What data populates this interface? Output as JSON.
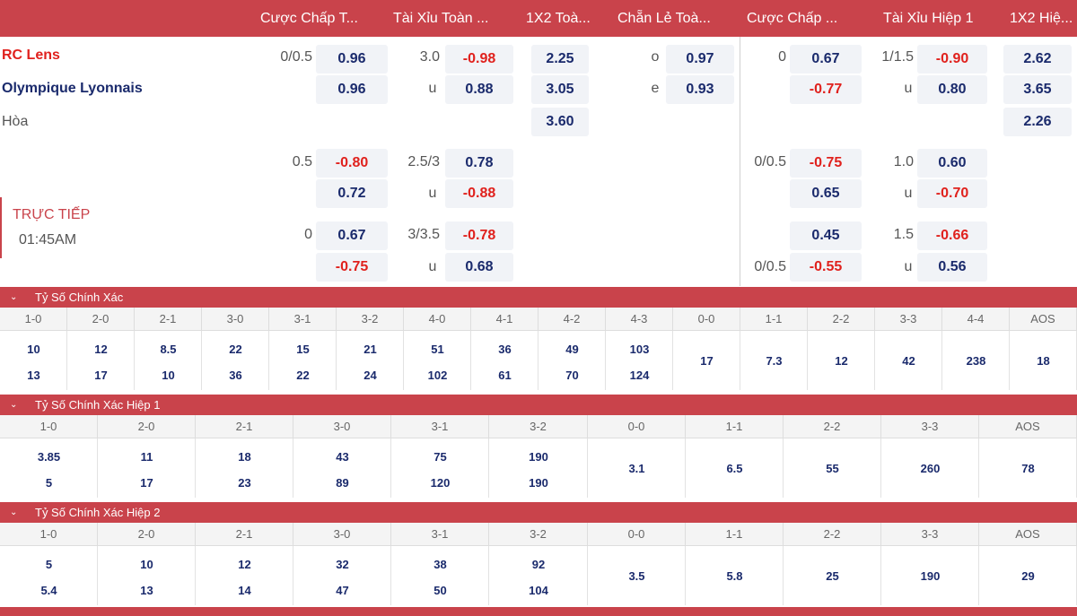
{
  "header": [
    "Cược Chấp T...",
    "Tài Xỉu Toàn ...",
    "1X2 Toà...",
    "Chẵn Lẻ Toà...",
    "Cược Chấp ...",
    "Tài Xỉu Hiệp 1",
    "1X2 Hiệ..."
  ],
  "match": {
    "home": "RC Lens",
    "away": "Olympique Lyonnais",
    "draw": "Hòa",
    "status": "TRỰC TIẾP",
    "time": "01:45AM"
  },
  "odds": {
    "r1": {
      "hdp_line": "0/0.5",
      "hdp_home": "0.96",
      "ou_line": "3.0",
      "ou_over": "-0.98",
      "x12_home": "2.25",
      "oe_o_label": "o",
      "oe_o": "0.97",
      "h1_hdp_line": "0",
      "h1_hdp_home": "0.67",
      "h1_ou_line": "1/1.5",
      "h1_ou_over": "-0.90",
      "h1_x12_home": "2.62"
    },
    "r2": {
      "hdp_away": "0.96",
      "ou_u_label": "u",
      "ou_under": "0.88",
      "x12_away": "3.05",
      "oe_e_label": "e",
      "oe_e": "0.93",
      "h1_hdp_away": "-0.77",
      "h1_ou_u_label": "u",
      "h1_ou_under": "0.80",
      "h1_x12_away": "3.65"
    },
    "r3": {
      "x12_draw": "3.60",
      "h1_x12_draw": "2.26"
    },
    "alt1": {
      "hdp_line": "0.5",
      "hdp_home": "-0.80",
      "ou_line": "2.5/3",
      "ou_over": "0.78",
      "h1_hdp_line": "0/0.5",
      "h1_hdp_home": "-0.75",
      "h1_ou_line": "1.0",
      "h1_ou_over": "0.60"
    },
    "alt1b": {
      "hdp_away": "0.72",
      "ou_u_label": "u",
      "ou_under": "-0.88",
      "h1_hdp_away": "0.65",
      "h1_ou_u_label": "u",
      "h1_ou_under": "-0.70"
    },
    "alt2": {
      "hdp_line": "0",
      "hdp_home": "0.67",
      "ou_line": "3/3.5",
      "ou_over": "-0.78",
      "h1_hdp_home": "0.45",
      "h1_ou_line": "1.5",
      "h1_ou_over": "-0.66"
    },
    "alt2b": {
      "hdp_away": "-0.75",
      "ou_u_label": "u",
      "ou_under": "0.68",
      "h1_hdp_line": "0/0.5",
      "h1_hdp_away": "-0.55",
      "h1_ou_u_label": "u",
      "h1_ou_under": "0.56"
    }
  },
  "sections": [
    {
      "title": "Tỷ Số Chính Xác",
      "labels": [
        "1-0",
        "2-0",
        "2-1",
        "3-0",
        "3-1",
        "3-2",
        "4-0",
        "4-1",
        "4-2",
        "4-3",
        "0-0",
        "1-1",
        "2-2",
        "3-3",
        "4-4",
        "AOS"
      ],
      "top": [
        "10",
        "12",
        "8.5",
        "22",
        "15",
        "21",
        "51",
        "36",
        "49",
        "103",
        "17",
        "7.3",
        "12",
        "42",
        "238",
        "18"
      ],
      "bottom": [
        "13",
        "17",
        "10",
        "36",
        "22",
        "24",
        "102",
        "61",
        "70",
        "124"
      ]
    },
    {
      "title": "Tỷ Số Chính Xác Hiệp 1",
      "labels": [
        "1-0",
        "2-0",
        "2-1",
        "3-0",
        "3-1",
        "3-2",
        "0-0",
        "1-1",
        "2-2",
        "3-3",
        "AOS"
      ],
      "top": [
        "3.85",
        "11",
        "18",
        "43",
        "75",
        "190",
        "3.1",
        "6.5",
        "55",
        "260",
        "78"
      ],
      "bottom": [
        "5",
        "17",
        "23",
        "89",
        "120",
        "190"
      ]
    },
    {
      "title": "Tỷ Số Chính Xác Hiệp 2",
      "labels": [
        "1-0",
        "2-0",
        "2-1",
        "3-0",
        "3-1",
        "3-2",
        "0-0",
        "1-1",
        "2-2",
        "3-3",
        "AOS"
      ],
      "top": [
        "5",
        "10",
        "12",
        "32",
        "38",
        "92",
        "3.5",
        "5.8",
        "25",
        "190",
        "29"
      ],
      "bottom": [
        "5.4",
        "13",
        "14",
        "47",
        "50",
        "104"
      ]
    }
  ],
  "colors": {
    "accent": "#c9434b",
    "home": "#e0211d",
    "away": "#1a2a6c",
    "negative": "#e0211d"
  },
  "icons": {
    "collapse": "chevron-down-icon"
  }
}
